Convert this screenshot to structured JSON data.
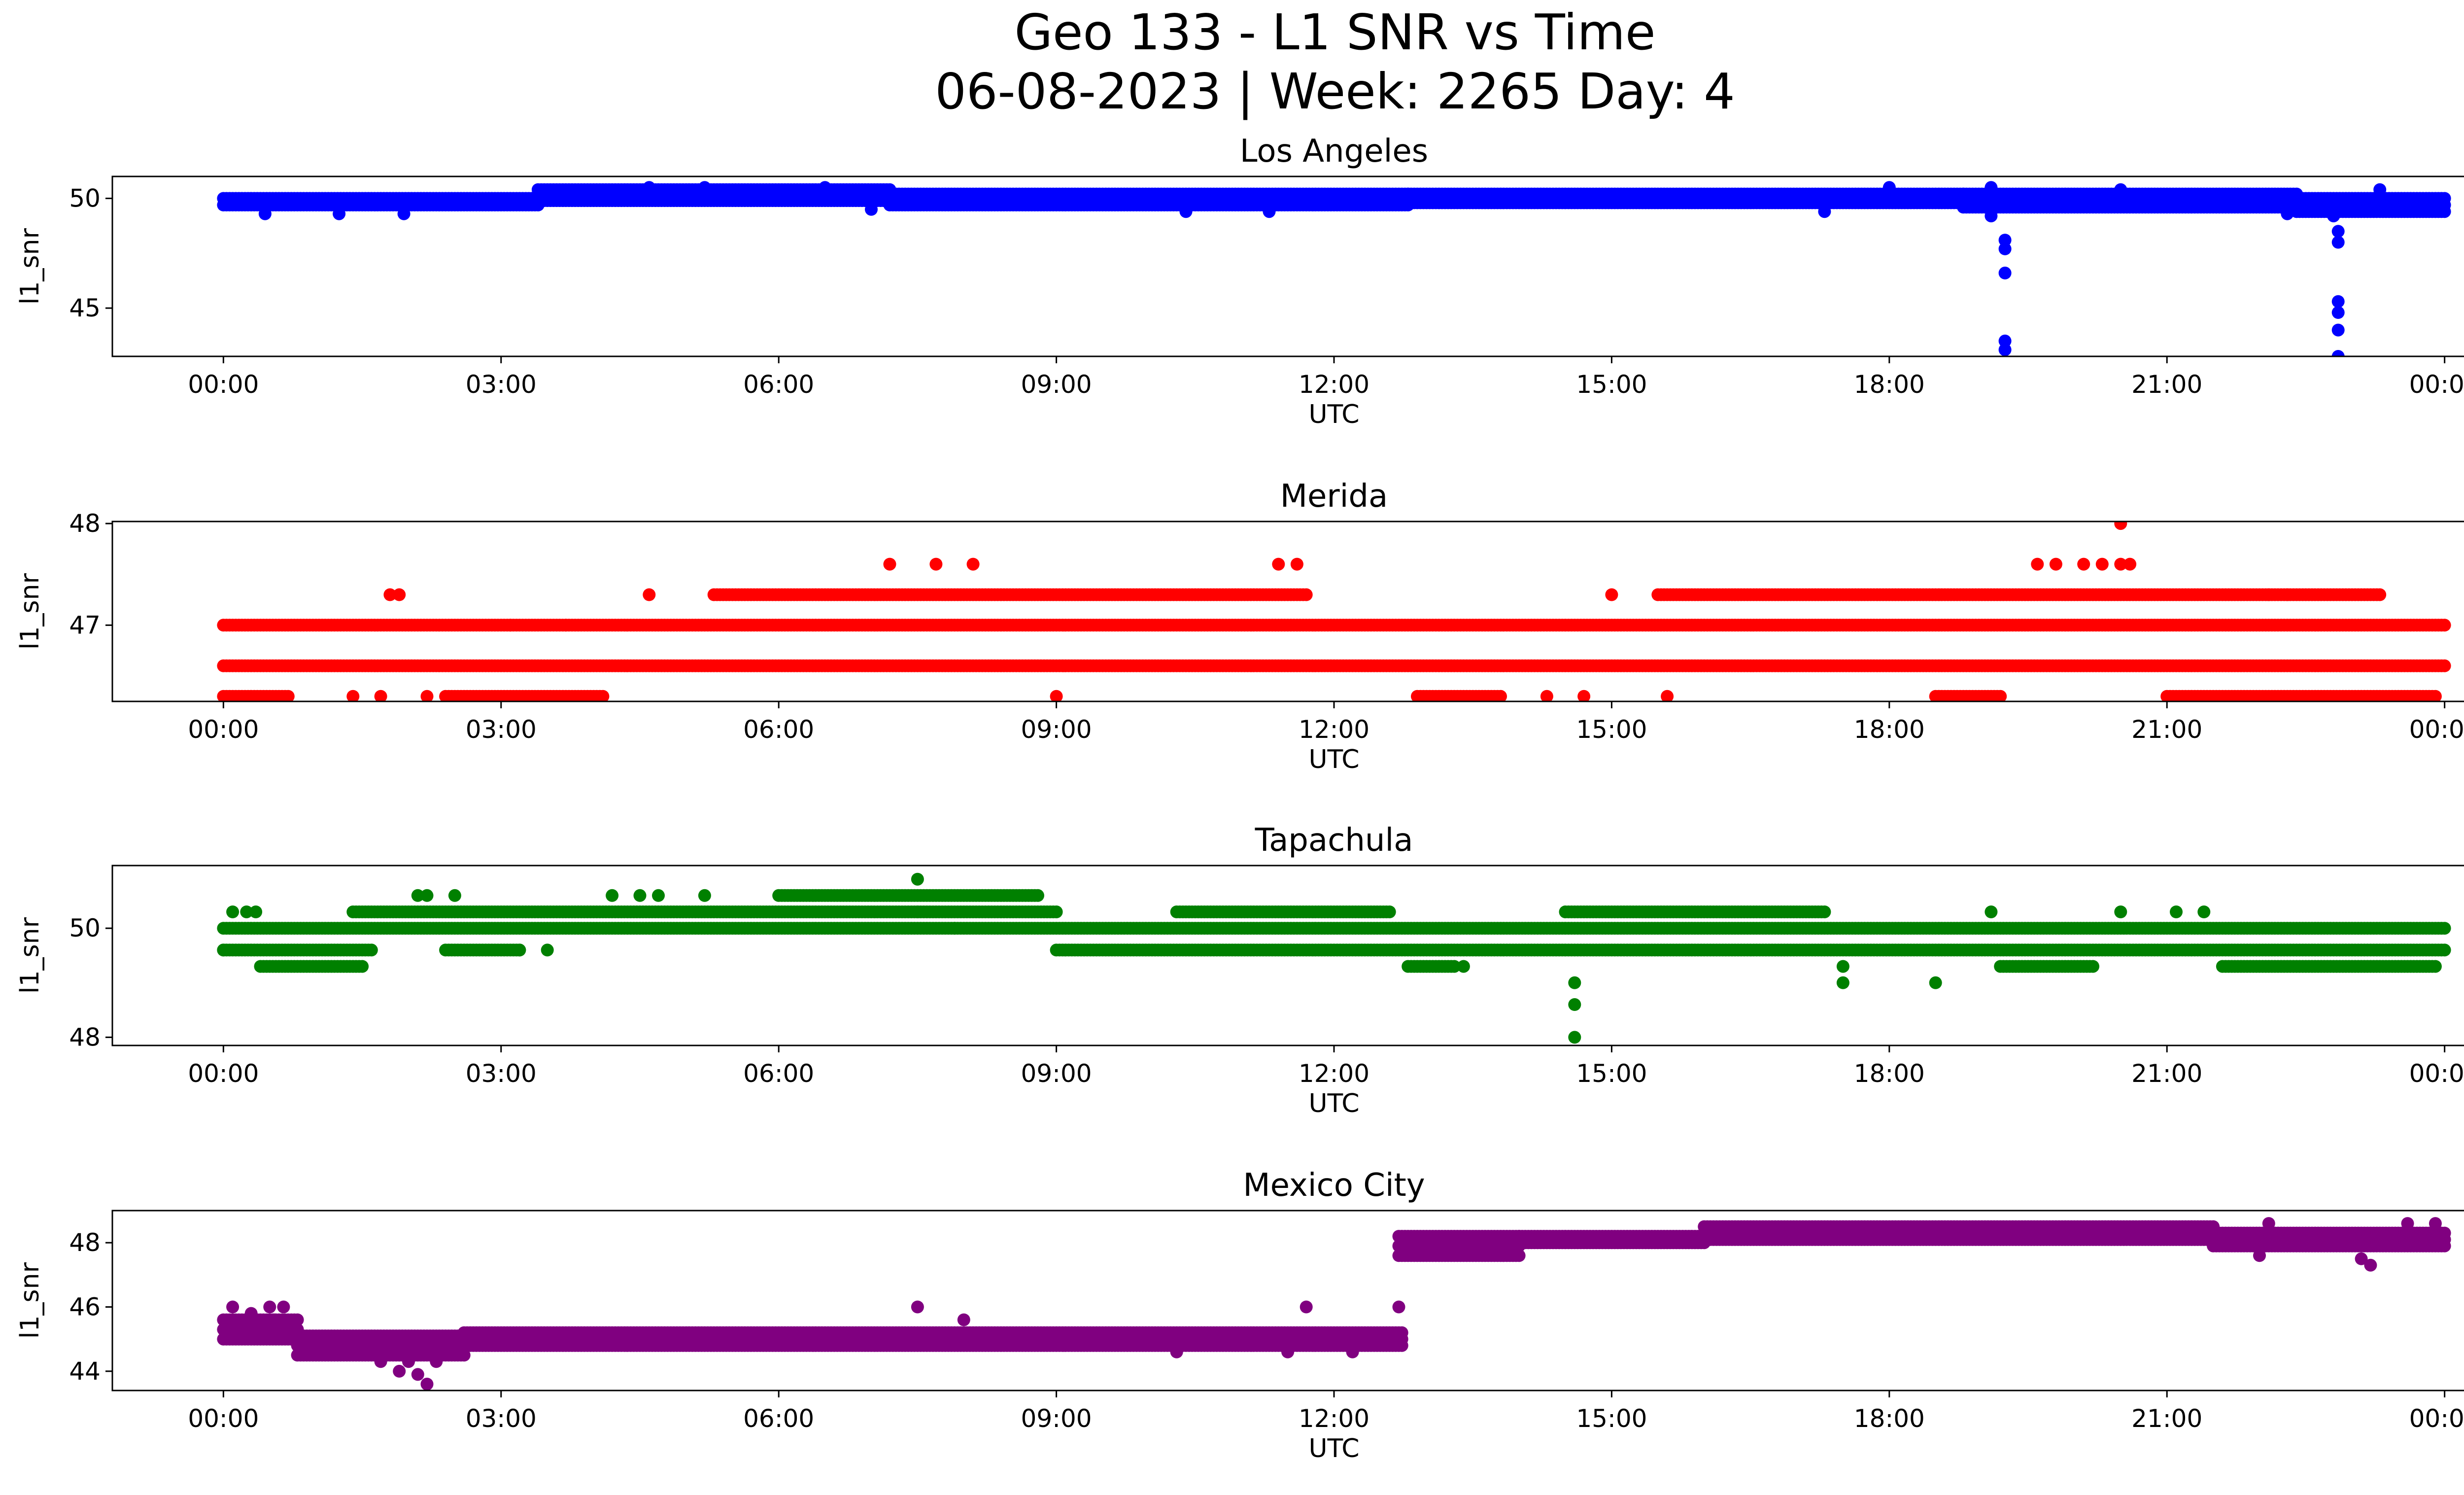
{
  "figure": {
    "title_line1": "Geo 133 - L1 SNR vs Time",
    "title_line2": "06-08-2023 | Week: 2265 Day: 4"
  },
  "chart_data": [
    {
      "type": "scatter",
      "title": "Los Angeles",
      "xlabel": "UTC",
      "ylabel": "l1_snr",
      "color": "#0000ff",
      "xlim_hours": [
        -1.2,
        25.2
      ],
      "ylim": [
        42.8,
        51.0
      ],
      "x_ticks": [
        "00:00",
        "03:00",
        "06:00",
        "09:00",
        "12:00",
        "15:00",
        "18:00",
        "21:00",
        "00:00"
      ],
      "y_ticks": [
        45,
        50
      ],
      "bands": [
        {
          "from": 0.0,
          "to": 3.4,
          "values": [
            49.7,
            50.0
          ]
        },
        {
          "from": 3.4,
          "to": 7.2,
          "values": [
            49.9,
            50.2,
            50.4
          ]
        },
        {
          "from": 7.2,
          "to": 12.8,
          "values": [
            49.7,
            50.0,
            50.2
          ]
        },
        {
          "from": 12.8,
          "to": 18.8,
          "values": [
            49.8,
            50.0,
            50.2
          ]
        },
        {
          "from": 18.8,
          "to": 22.4,
          "values": [
            49.6,
            49.9,
            50.2
          ]
        },
        {
          "from": 22.4,
          "to": 24.0,
          "values": [
            49.4,
            49.7,
            50.0
          ]
        }
      ],
      "points": [
        [
          0.45,
          49.3
        ],
        [
          1.25,
          49.3
        ],
        [
          1.95,
          49.3
        ],
        [
          4.6,
          50.5
        ],
        [
          5.2,
          50.5
        ],
        [
          6.5,
          50.5
        ],
        [
          7.0,
          49.5
        ],
        [
          10.4,
          49.4
        ],
        [
          11.3,
          49.4
        ],
        [
          17.3,
          49.4
        ],
        [
          18.0,
          50.5
        ],
        [
          19.1,
          50.5
        ],
        [
          19.1,
          49.2
        ],
        [
          19.25,
          48.1
        ],
        [
          19.25,
          47.7
        ],
        [
          19.25,
          46.6
        ],
        [
          19.25,
          43.5
        ],
        [
          19.25,
          43.1
        ],
        [
          20.5,
          50.4
        ],
        [
          22.3,
          49.3
        ],
        [
          22.8,
          49.2
        ],
        [
          22.85,
          48.5
        ],
        [
          22.85,
          48.0
        ],
        [
          22.85,
          45.3
        ],
        [
          22.85,
          44.8
        ],
        [
          22.85,
          44.0
        ],
        [
          22.85,
          42.8
        ],
        [
          23.3,
          50.4
        ]
      ]
    },
    {
      "type": "scatter",
      "title": "Merida",
      "xlabel": "UTC",
      "ylabel": "l1_snr",
      "color": "#ff0000",
      "xlim_hours": [
        -1.2,
        25.2
      ],
      "ylim": [
        46.25,
        48.02
      ],
      "x_ticks": [
        "00:00",
        "03:00",
        "06:00",
        "09:00",
        "12:00",
        "15:00",
        "18:00",
        "21:00",
        "00:00"
      ],
      "y_ticks": [
        47,
        48
      ],
      "bands": [
        {
          "from": 0.0,
          "to": 24.0,
          "values": [
            47.0
          ]
        },
        {
          "from": 0.0,
          "to": 24.0,
          "values": [
            46.6
          ]
        },
        {
          "from": 5.3,
          "to": 11.7,
          "values": [
            47.3
          ]
        },
        {
          "from": 15.5,
          "to": 23.3,
          "values": [
            47.3
          ]
        },
        {
          "from": 0.0,
          "to": 0.7,
          "values": [
            46.3
          ]
        },
        {
          "from": 2.4,
          "to": 4.1,
          "values": [
            46.3
          ]
        },
        {
          "from": 12.9,
          "to": 13.8,
          "values": [
            46.3
          ]
        },
        {
          "from": 18.5,
          "to": 19.2,
          "values": [
            46.3
          ]
        },
        {
          "from": 21.0,
          "to": 23.9,
          "values": [
            46.3
          ]
        }
      ],
      "points": [
        [
          1.8,
          47.3
        ],
        [
          1.9,
          47.3
        ],
        [
          4.6,
          47.3
        ],
        [
          7.2,
          47.6
        ],
        [
          7.7,
          47.6
        ],
        [
          8.1,
          47.6
        ],
        [
          11.4,
          47.6
        ],
        [
          11.6,
          47.6
        ],
        [
          15.0,
          47.3
        ],
        [
          19.6,
          47.6
        ],
        [
          19.8,
          47.6
        ],
        [
          20.1,
          47.6
        ],
        [
          20.3,
          47.6
        ],
        [
          20.5,
          47.6
        ],
        [
          20.6,
          47.6
        ],
        [
          20.5,
          48.0
        ],
        [
          22.1,
          47.3
        ],
        [
          22.3,
          47.3
        ],
        [
          1.4,
          46.3
        ],
        [
          1.7,
          46.3
        ],
        [
          2.2,
          46.3
        ],
        [
          9.0,
          46.3
        ],
        [
          14.3,
          46.3
        ],
        [
          14.7,
          46.3
        ],
        [
          15.6,
          46.3
        ],
        [
          3.1,
          47.0
        ],
        [
          3.7,
          47.0
        ]
      ]
    },
    {
      "type": "scatter",
      "title": "Tapachula",
      "xlabel": "UTC",
      "ylabel": "l1_snr",
      "color": "#008000",
      "xlim_hours": [
        -1.2,
        25.2
      ],
      "ylim": [
        47.85,
        51.15
      ],
      "x_ticks": [
        "00:00",
        "03:00",
        "06:00",
        "09:00",
        "12:00",
        "15:00",
        "18:00",
        "21:00",
        "00:00"
      ],
      "y_ticks": [
        48,
        50
      ],
      "bands": [
        {
          "from": 0.0,
          "to": 24.0,
          "values": [
            50.0
          ]
        },
        {
          "from": 0.0,
          "to": 1.6,
          "values": [
            49.6
          ]
        },
        {
          "from": 2.4,
          "to": 3.2,
          "values": [
            49.6
          ]
        },
        {
          "from": 9.0,
          "to": 24.0,
          "values": [
            49.6
          ]
        },
        {
          "from": 1.4,
          "to": 9.0,
          "values": [
            50.3
          ]
        },
        {
          "from": 6.0,
          "to": 8.8,
          "values": [
            50.6
          ]
        },
        {
          "from": 0.4,
          "to": 1.5,
          "values": [
            49.3
          ]
        },
        {
          "from": 12.8,
          "to": 13.3,
          "values": [
            49.3
          ]
        },
        {
          "from": 19.2,
          "to": 20.2,
          "values": [
            49.3
          ]
        },
        {
          "from": 21.6,
          "to": 23.9,
          "values": [
            49.3
          ]
        },
        {
          "from": 14.5,
          "to": 17.3,
          "values": [
            50.3
          ]
        },
        {
          "from": 10.3,
          "to": 12.6,
          "values": [
            50.3
          ]
        }
      ],
      "points": [
        [
          0.1,
          50.3
        ],
        [
          0.25,
          50.3
        ],
        [
          0.35,
          50.3
        ],
        [
          2.1,
          50.6
        ],
        [
          2.2,
          50.6
        ],
        [
          2.5,
          50.6
        ],
        [
          4.2,
          50.6
        ],
        [
          4.5,
          50.6
        ],
        [
          4.7,
          50.6
        ],
        [
          5.2,
          50.6
        ],
        [
          7.5,
          50.9
        ],
        [
          7.5,
          50.3
        ],
        [
          7.9,
          50.0
        ],
        [
          3.2,
          49.6
        ],
        [
          3.5,
          49.6
        ],
        [
          13.4,
          49.3
        ],
        [
          14.6,
          49.0
        ],
        [
          14.6,
          48.6
        ],
        [
          14.6,
          48.0
        ],
        [
          17.5,
          49.3
        ],
        [
          17.5,
          49.0
        ],
        [
          18.5,
          49.0
        ],
        [
          19.1,
          50.3
        ],
        [
          20.5,
          50.3
        ],
        [
          21.1,
          50.3
        ],
        [
          21.4,
          50.3
        ],
        [
          0.0,
          49.6
        ]
      ]
    },
    {
      "type": "scatter",
      "title": "Mexico City",
      "xlabel": "UTC",
      "ylabel": "l1_snr",
      "color": "#800080",
      "xlim_hours": [
        -1.2,
        25.2
      ],
      "ylim": [
        43.4,
        49.0
      ],
      "x_ticks": [
        "00:00",
        "03:00",
        "06:00",
        "09:00",
        "12:00",
        "15:00",
        "18:00",
        "21:00",
        "00:00"
      ],
      "y_ticks": [
        44,
        46,
        48
      ],
      "bands": [
        {
          "from": 0.0,
          "to": 0.8,
          "values": [
            45.0,
            45.3,
            45.6
          ]
        },
        {
          "from": 0.8,
          "to": 2.6,
          "values": [
            44.5,
            44.8,
            45.1
          ]
        },
        {
          "from": 2.6,
          "to": 12.75,
          "values": [
            44.8,
            45.0,
            45.2
          ]
        },
        {
          "from": 12.7,
          "to": 14.0,
          "values": [
            47.6,
            47.9,
            48.2
          ]
        },
        {
          "from": 14.0,
          "to": 16.0,
          "values": [
            48.0,
            48.2
          ]
        },
        {
          "from": 16.0,
          "to": 21.5,
          "values": [
            48.1,
            48.3,
            48.5
          ]
        },
        {
          "from": 21.5,
          "to": 24.0,
          "values": [
            47.9,
            48.1,
            48.3
          ]
        }
      ],
      "points": [
        [
          0.1,
          46.0
        ],
        [
          0.3,
          45.8
        ],
        [
          0.5,
          46.0
        ],
        [
          0.55,
          45.6
        ],
        [
          0.65,
          46.0
        ],
        [
          1.7,
          44.3
        ],
        [
          1.9,
          44.0
        ],
        [
          2.0,
          44.3
        ],
        [
          2.1,
          43.9
        ],
        [
          2.2,
          43.6
        ],
        [
          2.3,
          44.3
        ],
        [
          7.5,
          46.0
        ],
        [
          8.0,
          45.6
        ],
        [
          10.3,
          44.6
        ],
        [
          11.5,
          44.6
        ],
        [
          11.7,
          46.0
        ],
        [
          12.2,
          44.6
        ],
        [
          12.7,
          46.0
        ],
        [
          22.0,
          47.6
        ],
        [
          23.1,
          47.5
        ],
        [
          23.2,
          47.3
        ],
        [
          22.1,
          48.6
        ],
        [
          23.6,
          48.6
        ],
        [
          23.9,
          48.6
        ]
      ]
    }
  ]
}
